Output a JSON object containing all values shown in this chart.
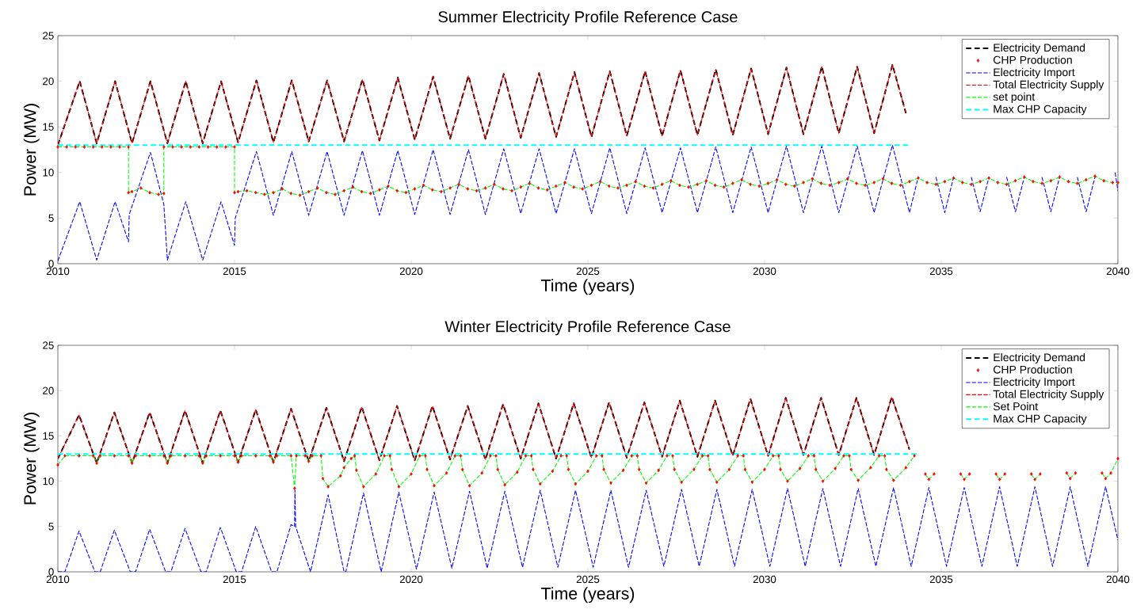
{
  "chart_data": [
    {
      "type": "line",
      "title": "Summer Electricity Profile Reference Case",
      "xlabel": "Time (years)",
      "ylabel": "Power (MW)",
      "xlim": [
        2010,
        2040
      ],
      "ylim": [
        0,
        25
      ],
      "xticks": [
        2010,
        2015,
        2020,
        2025,
        2030,
        2035,
        2040
      ],
      "yticks": [
        0,
        5,
        10,
        15,
        20,
        25
      ],
      "legend": "top right",
      "series": [
        {
          "name": "Electricity Demand",
          "color": "#000000",
          "type": "line",
          "line_style": "dashed",
          "x": [
            2010,
            2010.62,
            2011.1,
            2011.62,
            2012.1,
            2012.62,
            2013.1,
            2013.62,
            2014.1,
            2014.62,
            2015.1,
            2015.62,
            2016.1,
            2016.62,
            2017.1,
            2017.62,
            2018.1,
            2018.62,
            2019.1,
            2019.62,
            2020.1,
            2020.62,
            2021.1,
            2021.62,
            2022.1,
            2022.62,
            2023.1,
            2023.62,
            2024.1,
            2024.62,
            2025.1,
            2025.62,
            2026.1,
            2026.62,
            2027.1,
            2027.62,
            2028.1,
            2028.62,
            2029.1,
            2029.62,
            2030.1,
            2030.62,
            2031.1,
            2031.62,
            2032.1,
            2032.62,
            2033.1,
            2033.62,
            2034.0
          ],
          "values": [
            13.0,
            20.0,
            13.2,
            20.0,
            13.2,
            20.0,
            13.2,
            20.0,
            13.2,
            20.0,
            13.3,
            20.1,
            13.3,
            20.1,
            13.4,
            20.1,
            13.4,
            20.2,
            13.5,
            20.4,
            13.6,
            20.5,
            13.7,
            20.6,
            13.7,
            20.8,
            13.8,
            20.9,
            13.9,
            21.0,
            13.9,
            21.1,
            14.0,
            21.1,
            14.0,
            21.2,
            14.1,
            21.3,
            14.1,
            21.4,
            14.2,
            21.5,
            14.2,
            21.6,
            14.3,
            21.6,
            14.3,
            21.8,
            16.5
          ]
        },
        {
          "name": "CHP Production",
          "color": "#ff0000",
          "type": "scatter",
          "marker": "diamond",
          "x": [
            2010,
            2010.25,
            2010.5,
            2010.75,
            2011,
            2011.25,
            2011.5,
            2011.75,
            2012,
            2012,
            2012.1,
            2012.35,
            2012.6,
            2012.85,
            2013,
            2013,
            2013.25,
            2013.5,
            2013.75,
            2014,
            2014.25,
            2014.5,
            2014.75,
            2015,
            2015,
            2015.1,
            2015.35,
            2015.6,
            2015.85,
            2016.1,
            2016.35,
            2016.6,
            2016.85,
            2017.1,
            2017.35,
            2017.6,
            2017.85,
            2018.1,
            2018.35,
            2018.6,
            2018.85,
            2019.1,
            2019.35,
            2019.6,
            2019.85,
            2020.1,
            2020.35,
            2020.6,
            2020.85,
            2021.1,
            2021.35,
            2021.6,
            2021.85,
            2022.1,
            2022.35,
            2022.6,
            2022.85,
            2023.1,
            2023.35,
            2023.6,
            2023.85,
            2024.1,
            2024.35,
            2024.6,
            2024.85,
            2025.1,
            2025.35,
            2025.6,
            2025.85,
            2026.1,
            2026.35,
            2026.6,
            2026.85,
            2027.1,
            2027.35,
            2027.6,
            2027.85,
            2028.1,
            2028.35,
            2028.6,
            2028.85,
            2029.1,
            2029.35,
            2029.6,
            2029.85,
            2030.1,
            2030.35,
            2030.6,
            2030.85,
            2031.1,
            2031.35,
            2031.6,
            2031.85,
            2032.1,
            2032.35,
            2032.6,
            2032.85,
            2033.1,
            2033.35,
            2033.6,
            2033.85,
            2034.1,
            2034.35,
            2034.6,
            2034.85,
            2035.1,
            2035.35,
            2035.6,
            2035.85,
            2036.1,
            2036.35,
            2036.6,
            2036.85,
            2037.1,
            2037.35,
            2037.6,
            2037.85,
            2038.1,
            2038.35,
            2038.6,
            2038.85,
            2039.1,
            2039.35,
            2039.6,
            2039.85,
            2040
          ],
          "values": [
            12.8,
            12.8,
            12.8,
            12.8,
            12.8,
            12.8,
            12.8,
            12.8,
            12.8,
            7.8,
            7.9,
            8.3,
            7.8,
            7.6,
            7.7,
            12.8,
            12.8,
            12.8,
            12.8,
            12.8,
            12.8,
            12.8,
            12.8,
            12.8,
            7.8,
            7.9,
            8.0,
            7.8,
            7.6,
            7.8,
            8.2,
            7.7,
            7.5,
            7.9,
            8.3,
            7.8,
            7.6,
            8.0,
            8.4,
            7.9,
            7.7,
            8.1,
            8.5,
            8.0,
            7.8,
            8.2,
            8.6,
            8.1,
            7.9,
            8.3,
            8.7,
            8.2,
            8.0,
            8.3,
            8.7,
            8.2,
            8.0,
            8.4,
            8.8,
            8.3,
            8.1,
            8.5,
            8.9,
            8.4,
            8.2,
            8.6,
            9.0,
            8.5,
            8.3,
            8.6,
            9.0,
            8.5,
            8.3,
            8.7,
            9.1,
            8.6,
            8.4,
            8.7,
            9.1,
            8.6,
            8.4,
            8.8,
            9.2,
            8.7,
            8.5,
            8.8,
            9.2,
            8.7,
            8.5,
            8.9,
            9.3,
            8.8,
            8.6,
            8.9,
            9.3,
            8.8,
            8.6,
            8.9,
            9.3,
            8.8,
            8.6,
            9.0,
            9.4,
            8.9,
            8.7,
            9.0,
            9.4,
            8.9,
            8.7,
            9.0,
            9.4,
            8.9,
            8.7,
            9.1,
            9.5,
            9.0,
            8.8,
            9.1,
            9.5,
            9.0,
            8.8,
            9.2,
            9.6,
            9.1,
            8.9,
            8.9
          ]
        },
        {
          "name": "Electricity Import",
          "color": "#0000ff",
          "type": "line",
          "line_style": "dashed",
          "x": [
            2010,
            2010.62,
            2011.1,
            2011.62,
            2012.0,
            2012.02,
            2012.62,
            2013.0,
            2013.1,
            2013.62,
            2014.1,
            2014.62,
            2015.0,
            2015.02,
            2015.62,
            2016.1,
            2016.62,
            2017.1,
            2017.62,
            2018.1,
            2018.62,
            2019.1,
            2019.62,
            2020.1,
            2020.62,
            2021.1,
            2021.62,
            2022.1,
            2022.62,
            2023.1,
            2023.62,
            2024.1,
            2024.62,
            2025.1,
            2025.62,
            2026.1,
            2026.62,
            2027.1,
            2027.62,
            2028.1,
            2028.62,
            2029.1,
            2029.62,
            2030.1,
            2030.62,
            2031.1,
            2031.62,
            2032.1,
            2032.62,
            2033.1,
            2033.62,
            2034.1,
            2034.35,
            2034.62,
            2034.85,
            2035.1,
            2035.35,
            2035.62,
            2035.85,
            2036.1,
            2036.35,
            2036.62,
            2036.85,
            2037.1,
            2037.35,
            2037.62,
            2037.85,
            2038.1,
            2038.35,
            2038.62,
            2038.85,
            2039.1,
            2039.35,
            2039.62,
            2039.92,
            2040
          ],
          "values": [
            0.3,
            6.8,
            0.4,
            6.8,
            2.4,
            5.4,
            12.2,
            6.5,
            0.4,
            6.8,
            0.4,
            6.8,
            2.0,
            5.0,
            12.3,
            5.3,
            12.3,
            5.3,
            12.3,
            5.3,
            12.4,
            5.3,
            12.4,
            5.4,
            12.5,
            5.4,
            12.5,
            5.4,
            12.6,
            5.5,
            12.6,
            5.5,
            12.6,
            5.5,
            12.7,
            5.5,
            12.7,
            5.6,
            12.7,
            5.6,
            12.8,
            5.6,
            12.8,
            5.6,
            12.9,
            5.6,
            12.9,
            5.6,
            12.9,
            5.6,
            13.0,
            5.6,
            9.5,
            null,
            9.5,
            5.6,
            9.5,
            null,
            9.5,
            5.7,
            9.5,
            null,
            9.5,
            5.7,
            9.5,
            null,
            9.5,
            5.7,
            9.5,
            null,
            9.5,
            5.7,
            9.5,
            null,
            10.0,
            8.0
          ]
        },
        {
          "name": "Total Electricity Supply",
          "color": "#ff0000",
          "type": "line",
          "line_style": "dashed",
          "x": [
            2010,
            2010.62,
            2011.1,
            2011.62,
            2012.1,
            2012.62,
            2013.1,
            2013.62,
            2014.1,
            2014.62,
            2015.1,
            2015.62,
            2016.1,
            2016.62,
            2017.1,
            2017.62,
            2018.1,
            2018.62,
            2019.1,
            2019.62,
            2020.1,
            2020.62,
            2021.1,
            2021.62,
            2022.1,
            2022.62,
            2023.1,
            2023.62,
            2024.1,
            2024.62,
            2025.1,
            2025.62,
            2026.1,
            2026.62,
            2027.1,
            2027.62,
            2028.1,
            2028.62,
            2029.1,
            2029.62,
            2030.1,
            2030.62,
            2031.1,
            2031.62,
            2032.1,
            2032.62,
            2033.1,
            2033.62,
            2034.0
          ],
          "values": [
            13.0,
            20.0,
            13.2,
            20.0,
            13.2,
            20.0,
            13.2,
            20.0,
            13.2,
            20.0,
            13.3,
            20.1,
            13.3,
            20.1,
            13.4,
            20.1,
            13.4,
            20.2,
            13.5,
            20.4,
            13.6,
            20.5,
            13.7,
            20.6,
            13.7,
            20.8,
            13.8,
            20.9,
            13.9,
            21.0,
            13.9,
            21.1,
            14.0,
            21.1,
            14.0,
            21.2,
            14.1,
            21.3,
            14.1,
            21.4,
            14.2,
            21.5,
            14.2,
            21.6,
            14.3,
            21.6,
            14.3,
            21.8,
            16.5
          ]
        },
        {
          "name": "set point",
          "color": "#00ff00",
          "type": "line",
          "line_style": "dashed",
          "x": [
            2010,
            2010.25,
            2010.5,
            2010.75,
            2011,
            2011.25,
            2011.5,
            2011.75,
            2012,
            2012,
            2012.1,
            2012.35,
            2012.6,
            2012.85,
            2013,
            2013,
            2013.25,
            2013.5,
            2013.75,
            2014,
            2014.25,
            2014.5,
            2014.75,
            2015,
            2015,
            2015.1,
            2015.35,
            2015.6,
            2015.85,
            2016.1,
            2016.35,
            2016.6,
            2016.85,
            2017.1,
            2017.35,
            2017.6,
            2017.85,
            2018.1,
            2018.35,
            2018.6,
            2018.85,
            2019.1,
            2019.35,
            2019.6,
            2019.85,
            2020.1,
            2020.35,
            2020.6,
            2020.85,
            2021.1,
            2021.35,
            2021.6,
            2021.85,
            2022.1,
            2022.35,
            2022.6,
            2022.85,
            2023.1,
            2023.35,
            2023.6,
            2023.85,
            2024.1,
            2024.35,
            2024.6,
            2024.85,
            2025.1,
            2025.35,
            2025.6,
            2025.85,
            2026.1,
            2026.35,
            2026.6,
            2026.85,
            2027.1,
            2027.35,
            2027.6,
            2027.85,
            2028.1,
            2028.35,
            2028.6,
            2028.85,
            2029.1,
            2029.35,
            2029.6,
            2029.85,
            2030.1,
            2030.35,
            2030.6,
            2030.85,
            2031.1,
            2031.35,
            2031.6,
            2031.85,
            2032.1,
            2032.35,
            2032.6,
            2032.85,
            2033.1,
            2033.35,
            2033.6,
            2033.85,
            2034.1,
            2034.35,
            2034.6,
            2034.85,
            2035.1,
            2035.35,
            2035.6,
            2035.85,
            2036.1,
            2036.35,
            2036.6,
            2036.85,
            2037.1,
            2037.35,
            2037.6,
            2037.85,
            2038.1,
            2038.35,
            2038.6,
            2038.85,
            2039.1,
            2039.35,
            2039.6,
            2039.85,
            2040
          ],
          "values": [
            12.8,
            12.8,
            12.8,
            12.8,
            12.8,
            12.8,
            12.8,
            12.8,
            12.8,
            7.8,
            7.9,
            8.3,
            7.8,
            7.6,
            7.7,
            12.8,
            12.8,
            12.8,
            12.8,
            12.8,
            12.8,
            12.8,
            12.8,
            12.8,
            7.8,
            7.9,
            8.0,
            7.8,
            7.6,
            7.8,
            8.2,
            7.7,
            7.5,
            7.9,
            8.3,
            7.8,
            7.6,
            8.0,
            8.4,
            7.9,
            7.7,
            8.1,
            8.5,
            8.0,
            7.8,
            8.2,
            8.6,
            8.1,
            7.9,
            8.3,
            8.7,
            8.2,
            8.0,
            8.3,
            8.7,
            8.2,
            8.0,
            8.4,
            8.8,
            8.3,
            8.1,
            8.5,
            8.9,
            8.4,
            8.2,
            8.6,
            9.0,
            8.5,
            8.3,
            8.6,
            9.0,
            8.5,
            8.3,
            8.7,
            9.1,
            8.6,
            8.4,
            8.7,
            9.1,
            8.6,
            8.4,
            8.8,
            9.2,
            8.7,
            8.5,
            8.8,
            9.2,
            8.7,
            8.5,
            8.9,
            9.3,
            8.8,
            8.6,
            8.9,
            9.3,
            8.8,
            8.6,
            8.9,
            9.3,
            8.8,
            8.6,
            9.0,
            9.4,
            8.9,
            8.7,
            9.0,
            9.4,
            8.9,
            8.7,
            9.0,
            9.4,
            8.9,
            8.7,
            9.1,
            9.5,
            9.0,
            8.8,
            9.1,
            9.5,
            9.0,
            8.8,
            9.2,
            9.6,
            9.1,
            8.9,
            8.9
          ]
        },
        {
          "name": "Max CHP Capacity",
          "color": "#00ffff",
          "type": "line",
          "line_style": "dashed",
          "x": [
            2010,
            2034.1
          ],
          "values": [
            13,
            13
          ]
        }
      ]
    },
    {
      "type": "line",
      "title": "Winter Electricity Profile Reference Case",
      "xlabel": "Time (years)",
      "ylabel": "Power (MW)",
      "xlim": [
        2010,
        2040
      ],
      "ylim": [
        0,
        25
      ],
      "xticks": [
        2010,
        2015,
        2020,
        2025,
        2030,
        2035,
        2040
      ],
      "yticks": [
        0,
        5,
        10,
        15,
        20,
        25
      ],
      "legend": "top right",
      "series": [
        {
          "name": "Electricity Demand",
          "color": "#000000",
          "type": "line",
          "line_style": "dashed",
          "x": [
            2010,
            2010.6,
            2011.1,
            2011.6,
            2012.1,
            2012.6,
            2013.1,
            2013.6,
            2014.1,
            2014.6,
            2015.1,
            2015.6,
            2016.1,
            2016.6,
            2017.1,
            2017.6,
            2018.1,
            2018.6,
            2019.1,
            2019.6,
            2020.1,
            2020.6,
            2021.1,
            2021.6,
            2022.1,
            2022.6,
            2023.1,
            2023.6,
            2024.1,
            2024.6,
            2025.1,
            2025.6,
            2026.1,
            2026.6,
            2027.1,
            2027.6,
            2028.1,
            2028.6,
            2029.1,
            2029.6,
            2030.1,
            2030.6,
            2031.1,
            2031.6,
            2032.1,
            2032.6,
            2033.1,
            2033.6,
            2034.1
          ],
          "values": [
            12.5,
            17.3,
            12.0,
            17.6,
            12.0,
            17.6,
            12.0,
            17.8,
            12.0,
            17.8,
            12.1,
            17.9,
            12.1,
            18.0,
            12.2,
            18.1,
            12.2,
            18.2,
            12.3,
            18.3,
            12.3,
            18.3,
            12.4,
            18.3,
            12.4,
            18.5,
            12.5,
            18.6,
            12.5,
            18.6,
            12.6,
            18.7,
            12.6,
            18.7,
            12.7,
            18.9,
            12.7,
            18.9,
            12.8,
            19.1,
            12.8,
            19.2,
            12.9,
            19.2,
            12.9,
            19.2,
            12.9,
            19.3,
            13.5
          ]
        },
        {
          "name": "CHP Production",
          "color": "#ff0000",
          "type": "scatter",
          "marker": "diamond",
          "x": [
            2010,
            2010.2,
            2010.6,
            2011.0,
            2011.1,
            2011.2,
            2011.6,
            2012.0,
            2012.1,
            2012.2,
            2012.6,
            2013.0,
            2013.1,
            2013.2,
            2013.6,
            2014.0,
            2014.1,
            2014.2,
            2014.6,
            2015.0,
            2015.1,
            2015.2,
            2015.6,
            2016.0,
            2016.1,
            2016.2,
            2016.6,
            2016.7,
            2016.75,
            2017.0,
            2017.1,
            2017.2,
            2017.45,
            2017.5,
            2017.65,
            2018.0,
            2018.1,
            2018.3,
            2018.4,
            2018.45,
            2018.65,
            2019.0,
            2019.24,
            2019.4,
            2019.45,
            2019.65,
            2020.0,
            2020.24,
            2020.4,
            2020.45,
            2020.65,
            2021.0,
            2021.24,
            2021.4,
            2021.45,
            2021.65,
            2022.0,
            2022.24,
            2022.4,
            2022.45,
            2022.65,
            2023.0,
            2023.24,
            2023.4,
            2023.45,
            2023.65,
            2024.0,
            2024.24,
            2024.4,
            2024.45,
            2024.65,
            2025.0,
            2025.24,
            2025.4,
            2025.45,
            2025.65,
            2026.0,
            2026.24,
            2026.4,
            2026.45,
            2026.65,
            2027.0,
            2027.24,
            2027.4,
            2027.45,
            2027.65,
            2028.0,
            2028.24,
            2028.4,
            2028.45,
            2028.65,
            2029.0,
            2029.24,
            2029.4,
            2029.45,
            2029.65,
            2030.0,
            2030.24,
            2030.4,
            2030.45,
            2030.65,
            2031.0,
            2031.24,
            2031.4,
            2031.45,
            2031.65,
            2032.0,
            2032.24,
            2032.4,
            2032.45,
            2032.65,
            2033.0,
            2033.24,
            2033.4,
            2033.45,
            2033.65,
            2034.0,
            2034.24,
            2034.35,
            2034.55,
            2034.65,
            2034.8,
            2035.3,
            2035.55,
            2035.65,
            2035.8,
            2036.3,
            2036.55,
            2036.65,
            2036.8,
            2037.3,
            2037.55,
            2037.65,
            2037.8,
            2038.3,
            2038.55,
            2038.65,
            2038.8,
            2039.3,
            2039.55,
            2039.65,
            2039.8,
            2039.9,
            2040
          ],
          "values": [
            11.8,
            12.8,
            12.8,
            12.8,
            12.0,
            12.8,
            12.8,
            12.8,
            12.0,
            12.8,
            12.8,
            12.8,
            12.0,
            12.8,
            12.8,
            12.8,
            12.0,
            12.8,
            12.8,
            12.8,
            12.1,
            12.8,
            12.8,
            12.8,
            12.1,
            12.8,
            12.8,
            9.2,
            12.8,
            12.8,
            12.2,
            12.8,
            12.8,
            10.3,
            9.4,
            10.6,
            11.5,
            12.5,
            12.8,
            11.2,
            9.4,
            10.8,
            12.8,
            12.8,
            11.3,
            9.4,
            10.8,
            12.8,
            12.8,
            11.3,
            9.5,
            10.9,
            12.8,
            12.8,
            11.3,
            9.5,
            10.9,
            12.8,
            12.8,
            11.3,
            9.6,
            11.0,
            12.8,
            12.8,
            11.3,
            9.7,
            11.1,
            12.8,
            12.8,
            11.3,
            9.7,
            11.1,
            12.8,
            12.8,
            11.3,
            9.8,
            11.2,
            12.8,
            12.8,
            11.3,
            9.8,
            11.2,
            12.8,
            12.8,
            11.3,
            9.9,
            11.3,
            12.8,
            12.8,
            11.3,
            9.9,
            11.3,
            12.8,
            12.8,
            11.3,
            9.9,
            11.3,
            12.8,
            12.8,
            11.3,
            10.0,
            11.4,
            12.8,
            12.8,
            11.3,
            10.0,
            11.4,
            12.8,
            12.8,
            11.3,
            10.1,
            11.5,
            12.8,
            12.8,
            11.3,
            10.1,
            11.5,
            12.8,
            null,
            10.8,
            10.2,
            10.8,
            null,
            10.8,
            10.2,
            10.8,
            null,
            10.8,
            10.2,
            10.8,
            null,
            10.8,
            10.2,
            10.8,
            null,
            10.9,
            10.3,
            10.9,
            null,
            10.9,
            10.3,
            10.9,
            null,
            12.5
          ]
        },
        {
          "name": "Electricity Import",
          "color": "#0000ff",
          "type": "line",
          "line_style": "dashed",
          "x": [
            2010,
            2010.2,
            2010.6,
            2011.05,
            2011.2,
            2011.6,
            2012.05,
            2012.2,
            2012.6,
            2013.05,
            2013.2,
            2013.6,
            2014.05,
            2014.2,
            2014.6,
            2015.05,
            2015.2,
            2015.6,
            2016.05,
            2016.2,
            2016.6,
            2016.7,
            2016.71,
            2016.73,
            2017.15,
            2017.65,
            2018.1,
            2018.15,
            2018.65,
            2019.15,
            2019.65,
            2020.15,
            2020.65,
            2021.15,
            2021.65,
            2022.15,
            2022.65,
            2023.15,
            2023.65,
            2024.15,
            2024.65,
            2025.15,
            2025.65,
            2026.15,
            2026.65,
            2027.15,
            2027.65,
            2028.15,
            2028.65,
            2029.15,
            2029.65,
            2030.15,
            2030.65,
            2031.15,
            2031.65,
            2032.15,
            2032.65,
            2033.15,
            2033.65,
            2034.15,
            2034.65,
            2035.15,
            2035.65,
            2036.15,
            2036.65,
            2037.15,
            2037.65,
            2038.15,
            2038.65,
            2039.15,
            2039.65,
            2040
          ],
          "values": [
            0.0,
            0.0,
            4.5,
            0.0,
            0.0,
            4.6,
            0.0,
            0.0,
            4.7,
            0.0,
            0.0,
            4.8,
            0.0,
            0.0,
            4.9,
            0.0,
            0.0,
            5.0,
            0.0,
            0.0,
            5.2,
            5.0,
            9.0,
            5.0,
            0.0,
            8.5,
            0.0,
            0.0,
            8.7,
            0.0,
            8.8,
            0.3,
            8.8,
            0.4,
            8.9,
            0.4,
            8.9,
            0.5,
            9.0,
            0.5,
            9.0,
            0.5,
            9.0,
            0.5,
            9.0,
            0.6,
            9.1,
            0.6,
            9.1,
            0.6,
            9.1,
            0.6,
            9.2,
            0.6,
            9.2,
            0.6,
            9.2,
            0.6,
            9.3,
            0.6,
            9.3,
            0.6,
            9.3,
            0.6,
            9.4,
            0.6,
            9.4,
            0.6,
            9.4,
            0.6,
            9.4,
            3.5
          ]
        },
        {
          "name": "Total Electricity Supply",
          "color": "#ff0000",
          "type": "line",
          "line_style": "dashed",
          "x": [
            2010,
            2010.6,
            2011.1,
            2011.6,
            2012.1,
            2012.6,
            2013.1,
            2013.6,
            2014.1,
            2014.6,
            2015.1,
            2015.6,
            2016.1,
            2016.6,
            2017.1,
            2017.6,
            2018.1,
            2018.6,
            2019.1,
            2019.6,
            2020.1,
            2020.6,
            2021.1,
            2021.6,
            2022.1,
            2022.6,
            2023.1,
            2023.6,
            2024.1,
            2024.6,
            2025.1,
            2025.6,
            2026.1,
            2026.6,
            2027.1,
            2027.6,
            2028.1,
            2028.6,
            2029.1,
            2029.6,
            2030.1,
            2030.6,
            2031.1,
            2031.6,
            2032.1,
            2032.6,
            2033.1,
            2033.6,
            2034.1
          ],
          "values": [
            12.5,
            17.3,
            12.0,
            17.6,
            12.0,
            17.6,
            12.0,
            17.8,
            12.0,
            17.8,
            12.1,
            17.9,
            12.1,
            18.0,
            12.2,
            18.1,
            12.2,
            18.2,
            12.3,
            18.3,
            12.3,
            18.3,
            12.4,
            18.3,
            12.4,
            18.5,
            12.5,
            18.6,
            12.5,
            18.6,
            12.6,
            18.7,
            12.6,
            18.7,
            12.7,
            18.9,
            12.7,
            18.9,
            12.8,
            19.1,
            12.8,
            19.2,
            12.9,
            19.2,
            12.9,
            19.2,
            12.9,
            19.3,
            13.5
          ]
        },
        {
          "name": "Set Point",
          "color": "#00ff00",
          "type": "line",
          "line_style": "dashed",
          "x": [
            2010,
            2010.2,
            2010.6,
            2011.0,
            2011.1,
            2011.2,
            2011.6,
            2012.0,
            2012.1,
            2012.2,
            2012.6,
            2013.0,
            2013.1,
            2013.2,
            2013.6,
            2014.0,
            2014.1,
            2014.2,
            2014.6,
            2015.0,
            2015.1,
            2015.2,
            2015.6,
            2016.0,
            2016.1,
            2016.2,
            2016.6,
            2016.7,
            2016.75,
            2017.0,
            2017.1,
            2017.2,
            2017.45,
            2017.5,
            2017.65,
            2018.0,
            2018.1,
            2018.3,
            2018.4,
            2018.45,
            2018.65,
            2019.0,
            2019.24,
            2019.4,
            2019.45,
            2019.65,
            2020.0,
            2020.24,
            2020.4,
            2020.45,
            2020.65,
            2021.0,
            2021.24,
            2021.4,
            2021.45,
            2021.65,
            2022.0,
            2022.24,
            2022.4,
            2022.45,
            2022.65,
            2023.0,
            2023.24,
            2023.4,
            2023.45,
            2023.65,
            2024.0,
            2024.24,
            2024.4,
            2024.45,
            2024.65,
            2025.0,
            2025.24,
            2025.4,
            2025.45,
            2025.65,
            2026.0,
            2026.24,
            2026.4,
            2026.45,
            2026.65,
            2027.0,
            2027.24,
            2027.4,
            2027.45,
            2027.65,
            2028.0,
            2028.24,
            2028.4,
            2028.45,
            2028.65,
            2029.0,
            2029.24,
            2029.4,
            2029.45,
            2029.65,
            2030.0,
            2030.24,
            2030.4,
            2030.45,
            2030.65,
            2031.0,
            2031.24,
            2031.4,
            2031.45,
            2031.65,
            2032.0,
            2032.24,
            2032.4,
            2032.45,
            2032.65,
            2033.0,
            2033.24,
            2033.4,
            2033.45,
            2033.65,
            2034.0,
            2034.24,
            2034.35,
            2034.55,
            2034.65,
            2034.8,
            2035.3,
            2035.55,
            2035.65,
            2035.8,
            2036.3,
            2036.55,
            2036.65,
            2036.8,
            2037.3,
            2037.55,
            2037.65,
            2037.8,
            2038.3,
            2038.55,
            2038.65,
            2038.8,
            2039.3,
            2039.55,
            2039.65,
            2039.8,
            2039.9,
            2040
          ],
          "values": [
            11.8,
            12.8,
            12.8,
            12.8,
            12.0,
            12.8,
            12.8,
            12.8,
            12.0,
            12.8,
            12.8,
            12.8,
            12.0,
            12.8,
            12.8,
            12.8,
            12.0,
            12.8,
            12.8,
            12.8,
            12.1,
            12.8,
            12.8,
            12.8,
            12.1,
            12.8,
            12.8,
            9.2,
            12.8,
            12.8,
            12.2,
            12.8,
            12.8,
            10.3,
            9.4,
            10.6,
            11.5,
            12.5,
            12.8,
            11.2,
            9.4,
            10.8,
            12.8,
            12.8,
            11.3,
            9.4,
            10.8,
            12.8,
            12.8,
            11.3,
            9.5,
            10.9,
            12.8,
            12.8,
            11.3,
            9.5,
            10.9,
            12.8,
            12.8,
            11.3,
            9.6,
            11.0,
            12.8,
            12.8,
            11.3,
            9.7,
            11.1,
            12.8,
            12.8,
            11.3,
            9.7,
            11.1,
            12.8,
            12.8,
            11.3,
            9.8,
            11.2,
            12.8,
            12.8,
            11.3,
            9.8,
            11.2,
            12.8,
            12.8,
            11.3,
            9.9,
            11.3,
            12.8,
            12.8,
            11.3,
            9.9,
            11.3,
            12.8,
            12.8,
            11.3,
            9.9,
            11.3,
            12.8,
            12.8,
            11.3,
            10.0,
            11.4,
            12.8,
            12.8,
            11.3,
            10.0,
            11.4,
            12.8,
            12.8,
            11.3,
            10.1,
            11.5,
            12.8,
            12.8,
            11.3,
            10.1,
            11.5,
            12.8,
            null,
            10.8,
            10.2,
            10.8,
            null,
            10.8,
            10.2,
            10.8,
            null,
            10.8,
            10.2,
            10.8,
            null,
            10.8,
            10.2,
            10.8,
            null,
            10.9,
            10.3,
            10.9,
            null,
            10.9,
            10.3,
            10.9,
            11.7,
            12.5
          ]
        },
        {
          "name": "Max CHP Capacity",
          "color": "#00ffff",
          "type": "line",
          "line_style": "dashed",
          "x": [
            2010,
            2034.3
          ],
          "values": [
            13,
            13
          ]
        }
      ]
    }
  ]
}
